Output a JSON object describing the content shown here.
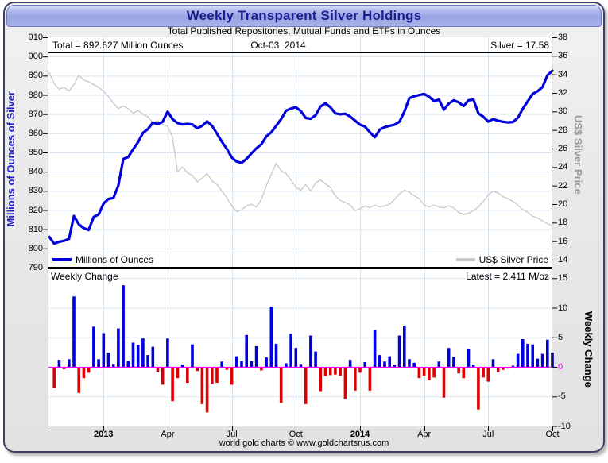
{
  "window": {
    "title": "Weekly Transparent Silver Holdings",
    "subtitle": "Total Published Repositories, Mutual Funds and ETFs in Ounces",
    "footer": "world gold charts © www.goldchartsrus.com"
  },
  "annotations": {
    "total": "Total = 892.627 Million Ounces",
    "date": "Oct-03  2014",
    "silver": "Silver = 17.58",
    "weekly_change_header": "Weekly Change",
    "latest": "Latest = 2.411 M/oz"
  },
  "legend": {
    "holdings": "Millions of Ounces",
    "price": "US$ Silver Price"
  },
  "axes": {
    "left_title": "Millions of Ounces of Silver",
    "right_price_title": "US$ Silver Price",
    "right_change_title": "Weekly Change",
    "left_ticks": [
      910,
      900,
      890,
      880,
      870,
      860,
      850,
      840,
      830,
      820,
      810,
      800,
      790
    ],
    "right_price_ticks": [
      38,
      36,
      34,
      32,
      30,
      28,
      26,
      24,
      22,
      20,
      18,
      16,
      14
    ],
    "right_change_ticks": [
      15,
      10,
      5,
      0,
      -5,
      -10
    ],
    "x_ticks": [
      {
        "label": "2013",
        "week": 11,
        "bold": true
      },
      {
        "label": "Apr",
        "week": 24,
        "bold": false
      },
      {
        "label": "Jul",
        "week": 37,
        "bold": false
      },
      {
        "label": "Oct",
        "week": 50,
        "bold": false
      },
      {
        "label": "2014",
        "week": 63,
        "bold": true
      },
      {
        "label": "Apr",
        "week": 76,
        "bold": false
      },
      {
        "label": "Jul",
        "week": 89,
        "bold": false
      },
      {
        "label": "Oct",
        "week": 102,
        "bold": false
      }
    ]
  },
  "colors": {
    "holdings_line": "#0000dd",
    "price_line": "#c8c8c8",
    "positive_bar": "#0000dd",
    "negative_bar": "#dd0000",
    "zero_line": "#ff00ff",
    "gridline": "#d9e5f3",
    "plot_border": "#000000",
    "title_text": "#1c1c8f"
  },
  "chart_data": [
    {
      "type": "line",
      "title": "Weekly Transparent Silver Holdings",
      "x_unit": "week (Oct 2012 - Oct 2014)",
      "x_range_weeks": [
        0,
        102
      ],
      "left_axis": {
        "label": "Millions of Ounces of Silver",
        "range": [
          790,
          910
        ]
      },
      "right_axis": {
        "label": "US$ Silver Price",
        "range": [
          13.2,
          38
        ]
      },
      "grid": true,
      "legend_position": "bottom-inside",
      "series": [
        {
          "name": "Millions of Ounces",
          "axis": "left",
          "values": [
            806.0,
            802.5,
            803.5,
            804.0,
            805.0,
            816.9,
            812.5,
            810.6,
            809.6,
            816.4,
            817.7,
            823.4,
            825.8,
            826.3,
            832.8,
            846.6,
            847.6,
            851.7,
            855.4,
            860.2,
            862.2,
            865.6,
            864.8,
            866.0,
            871.3,
            867.4,
            865.3,
            864.6,
            864.9,
            864.6,
            862.6,
            863.9,
            866.2,
            863.9,
            859.8,
            855.6,
            851.9,
            847.4,
            845.3,
            844.6,
            846.7,
            849.5,
            852.2,
            854.3,
            858.4,
            860.5,
            863.9,
            867.4,
            871.8,
            872.9,
            873.6,
            871.5,
            868.0,
            867.6,
            869.4,
            874.0,
            875.6,
            873.6,
            870.4,
            869.9,
            870.2,
            868.7,
            866.6,
            864.5,
            863.5,
            860.5,
            858.0,
            861.9,
            863.2,
            863.9,
            864.5,
            866.0,
            871.3,
            878.3,
            879.3,
            879.9,
            880.5,
            879.0,
            876.8,
            877.5,
            872.3,
            875.5,
            877.2,
            876.1,
            874.2,
            877.2,
            877.6,
            870.4,
            868.6,
            866.1,
            867.4,
            866.5,
            866.0,
            865.7,
            865.9,
            868.1,
            872.8,
            876.7,
            880.5,
            881.9,
            884.1,
            890.216,
            892.627
          ]
        },
        {
          "name": "US$ Silver Price",
          "axis": "right",
          "values": [
            34.2,
            33.0,
            32.4,
            32.6,
            32.2,
            32.9,
            33.9,
            33.4,
            33.2,
            32.9,
            32.6,
            32.2,
            31.6,
            30.9,
            30.3,
            30.6,
            30.3,
            29.8,
            30.1,
            29.7,
            29.4,
            28.8,
            29.0,
            28.6,
            28.4,
            27.2,
            23.5,
            24.0,
            23.4,
            23.1,
            22.4,
            22.8,
            23.3,
            22.5,
            22.1,
            21.4,
            20.7,
            19.8,
            19.2,
            19.4,
            19.8,
            20.0,
            19.7,
            20.5,
            22.0,
            23.2,
            24.4,
            23.6,
            23.3,
            22.6,
            21.8,
            21.5,
            22.1,
            21.4,
            22.3,
            22.6,
            22.2,
            21.8,
            20.9,
            20.4,
            20.2,
            19.9,
            19.3,
            19.5,
            19.8,
            19.6,
            19.9,
            19.7,
            19.8,
            20.0,
            20.5,
            21.1,
            21.5,
            21.3,
            20.9,
            20.6,
            19.9,
            19.7,
            19.9,
            19.7,
            19.6,
            19.8,
            19.6,
            19.1,
            18.9,
            19.0,
            19.3,
            19.7,
            20.3,
            21.0,
            21.4,
            21.2,
            20.8,
            20.6,
            20.3,
            19.9,
            19.4,
            19.1,
            18.7,
            18.5,
            18.2,
            17.9,
            17.58
          ]
        }
      ],
      "annotations": [
        "Total = 892.627 Million Ounces",
        "Oct-03  2014",
        "Silver = 17.58"
      ]
    },
    {
      "type": "bar",
      "title": "Weekly Change",
      "x_unit": "week (Oct 2012 - Oct 2014)",
      "y_axis": {
        "label": "Weekly Change",
        "range": [
          -10.1,
          16.6
        ]
      },
      "zero_line": true,
      "latest": 2.411,
      "values": [
        null,
        -3.6,
        1.2,
        -0.4,
        1.3,
        11.9,
        -4.4,
        -1.9,
        -1.0,
        6.8,
        1.3,
        5.7,
        2.4,
        0.5,
        6.5,
        13.8,
        1.0,
        4.1,
        3.7,
        4.8,
        2.0,
        3.4,
        -0.8,
        -3.0,
        4.8,
        -5.8,
        -1.9,
        0.4,
        -2.7,
        3.8,
        -0.7,
        -6.3,
        -7.7,
        -2.9,
        -2.7,
        0.9,
        -0.5,
        -3.0,
        1.8,
        1.0,
        5.4,
        1.0,
        3.5,
        -0.6,
        1.6,
        10.2,
        3.9,
        -6.1,
        0.6,
        5.6,
        3.2,
        0.5,
        -6.3,
        5.3,
        2.6,
        -4.1,
        -1.6,
        -1.4,
        -1.3,
        -1.5,
        -5.4,
        1.2,
        -4.0,
        -1.0,
        0.8,
        -4.0,
        6.2,
        2.0,
        0.9,
        1.8,
        0.4,
        5.3,
        7.0,
        1.3,
        0.7,
        -1.9,
        -1.5,
        -2.3,
        -1.8,
        0.9,
        -5.2,
        3.2,
        1.7,
        -1.1,
        -1.9,
        3.0,
        0.4,
        -7.2,
        -1.8,
        -2.5,
        1.3,
        -0.9,
        -0.5,
        -0.3,
        0.2,
        2.2,
        4.7,
        3.9,
        3.8,
        1.4,
        2.2,
        4.6,
        2.411
      ]
    }
  ]
}
